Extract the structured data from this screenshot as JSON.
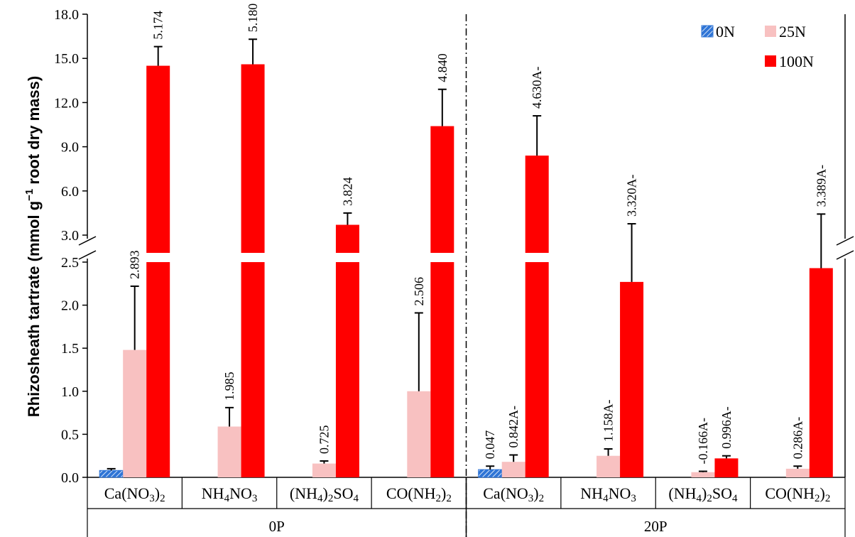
{
  "chart_data": {
    "type": "bar",
    "ylabel": "Rhizosheath tartrate (mmol g⁻¹ root dry mass)",
    "ylabel_parts": {
      "a": "Rhizosheath tartrate  (mmol g",
      "sup": "−1",
      "b": " root dry mass)"
    },
    "y_broken_axis": {
      "lower_range": [
        0,
        2.5
      ],
      "upper_range": [
        3.0,
        18.0
      ],
      "break_between": [
        2.5,
        3.0
      ]
    },
    "yticks_lower": [
      "0.0",
      "0.5",
      "1.0",
      "1.5",
      "2.0",
      "2.5"
    ],
    "yticks_upper": [
      "3.0",
      "6.0",
      "9.0",
      "12.0",
      "15.0",
      "18.0"
    ],
    "groups": [
      {
        "name": "0P",
        "categories": [
          "Ca(NO3)2",
          "NH4NO3",
          "(NH4)2SO4",
          "CO(NH2)2"
        ]
      },
      {
        "name": "20P",
        "categories": [
          "Ca(NO3)2",
          "NH4NO3",
          "(NH4)2SO4",
          "CO(NH2)2"
        ]
      }
    ],
    "legend": {
      "position": "top-right",
      "entries": [
        "0N",
        "25N",
        "100N"
      ]
    },
    "series": [
      {
        "name": "0N",
        "color": "#2f75d6",
        "hatched": true,
        "values": [
          0.08,
          null,
          null,
          null,
          0.09,
          null,
          null,
          null
        ],
        "errors": [
          0.02,
          null,
          null,
          null,
          0.04,
          null,
          null,
          null
        ],
        "labels": [
          "",
          "",
          "",
          "",
          "0.047",
          "",
          "",
          ""
        ]
      },
      {
        "name": "25N",
        "color": "#f8c1c1",
        "hatched": false,
        "values": [
          1.48,
          0.59,
          0.16,
          1.0,
          0.18,
          0.25,
          0.06,
          0.1
        ],
        "errors": [
          0.74,
          0.22,
          0.03,
          0.91,
          0.08,
          0.08,
          0.01,
          0.03
        ],
        "labels": [
          "2.893",
          "1.985",
          "0.725",
          "2.506",
          "0.842A-",
          "1.158A-",
          "-0.166A-",
          "0.286A-"
        ]
      },
      {
        "name": "100N",
        "color": "#ff0000",
        "hatched": false,
        "values": [
          14.5,
          14.6,
          3.7,
          10.4,
          8.4,
          2.27,
          0.22,
          2.43
        ],
        "errors": [
          1.3,
          1.7,
          0.8,
          2.5,
          2.7,
          1.5,
          0.03,
          2.0
        ],
        "labels": [
          "5.174",
          "5.180",
          "3.824",
          "4.840",
          "4.630A-",
          "3.320A-",
          "0.996A-",
          "3.389A-"
        ]
      }
    ]
  }
}
